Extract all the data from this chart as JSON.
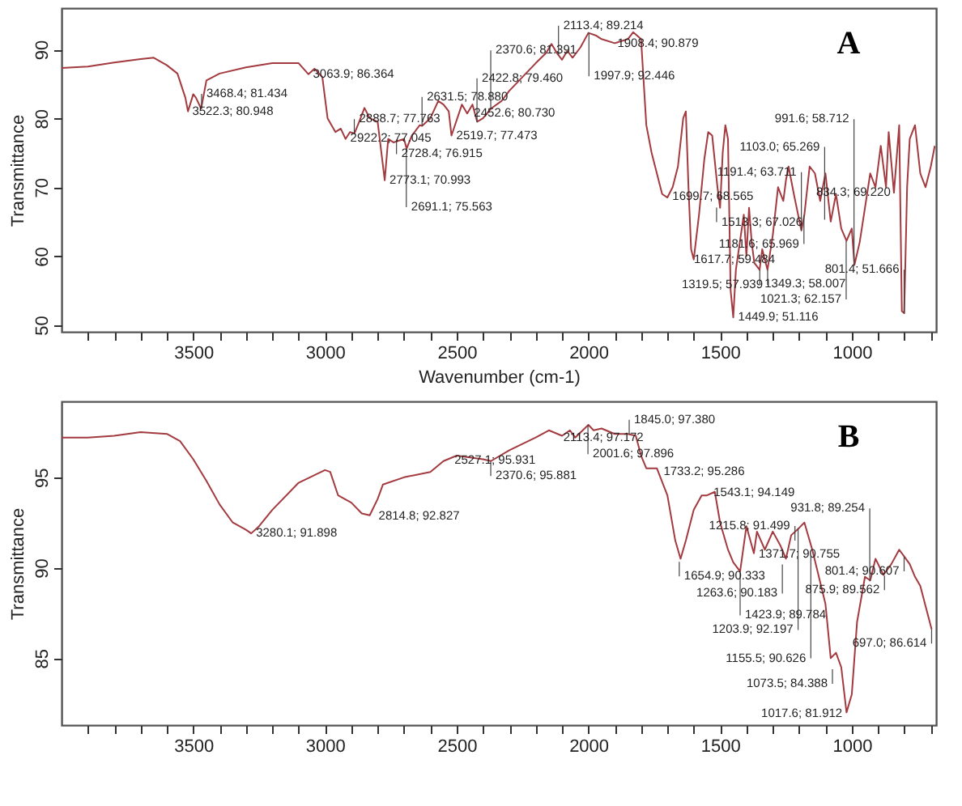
{
  "chart_data": [
    {
      "type": "line",
      "title": "A",
      "xlabel": "Wavenumber (cm-1)",
      "ylabel": "Transmittance",
      "x": [
        4000,
        3900,
        3800,
        3700,
        3650,
        3600,
        3560,
        3530,
        3520,
        3500,
        3490,
        3470,
        3450,
        3400,
        3300,
        3200,
        3100,
        3063,
        3040,
        3010,
        2990,
        2960,
        2940,
        2922,
        2905,
        2888,
        2870,
        2850,
        2830,
        2800,
        2773.1,
        2760,
        2740,
        2700,
        2690,
        2670,
        2640,
        2631,
        2600,
        2570,
        2550,
        2530,
        2519.7,
        2480,
        2460,
        2440,
        2422,
        2400,
        2370,
        2330,
        2300,
        2250,
        2200,
        2160,
        2140,
        2120,
        2100,
        2080,
        2060,
        2030,
        2000,
        1970,
        1950,
        1900,
        1850,
        1830,
        1800,
        1780,
        1760,
        1740,
        1720,
        1700,
        1680,
        1660,
        1640,
        1630,
        1620,
        1610,
        1600,
        1580,
        1560,
        1545,
        1530,
        1510,
        1500,
        1490,
        1480,
        1470,
        1460,
        1450,
        1440,
        1425,
        1410,
        1400,
        1390,
        1380,
        1370,
        1350,
        1340,
        1320,
        1300,
        1280,
        1260,
        1250,
        1240,
        1220,
        1191.4,
        1180,
        1160,
        1140,
        1120,
        1100,
        1080,
        1060,
        1040,
        1020,
        1000,
        990,
        970,
        950,
        930,
        910,
        890,
        870,
        860,
        840,
        820,
        810,
        801,
        790,
        780,
        760,
        740,
        720,
        700,
        685
      ],
      "series": [
        {
          "color": "#a33a3f",
          "values": [
            87.3,
            87.5,
            88.1,
            88.6,
            88.8,
            87.7,
            86.5,
            83,
            81,
            83.5,
            83,
            81.4,
            85.5,
            86.5,
            87.4,
            88,
            88,
            86.4,
            87.2,
            86,
            80,
            78,
            78.5,
            77,
            78,
            77.8,
            79.5,
            81.5,
            80,
            79.5,
            71.0,
            77,
            76.5,
            77,
            75.6,
            77.5,
            79,
            78.9,
            80,
            82.5,
            82,
            81,
            77.5,
            82,
            80.7,
            82,
            79.5,
            80,
            81.4,
            82.5,
            84,
            86,
            88,
            89.5,
            90.8,
            89.5,
            88.5,
            89.8,
            88.8,
            90.3,
            92.4,
            92,
            91.5,
            90.9,
            91.5,
            92.5,
            91.5,
            79,
            75,
            72,
            69,
            68.5,
            70,
            73,
            80,
            81,
            70,
            61,
            59.5,
            66,
            74,
            78,
            77.5,
            70,
            67,
            75,
            79,
            77,
            55,
            51.1,
            58,
            62,
            66,
            60,
            67,
            62,
            59,
            58,
            61,
            58,
            63,
            70,
            68,
            71,
            73,
            69,
            63.7,
            66,
            73,
            72,
            68,
            72,
            65,
            69,
            64,
            62.2,
            64,
            58.7,
            62,
            67,
            72,
            70,
            76,
            70,
            78,
            69.2,
            79,
            52,
            51.7,
            70,
            77,
            79,
            72,
            70,
            73,
            76
          ]
        }
      ],
      "xlim": [
        4000,
        680
      ],
      "ylim": [
        49,
        96
      ],
      "xticks": [
        {
          "value": 3900,
          "label": null
        },
        {
          "value": 3800,
          "label": null
        },
        {
          "value": 3700,
          "label": null
        },
        {
          "value": 3600,
          "label": null
        },
        3500,
        {
          "value": 3400,
          "label": null
        },
        {
          "value": 3300,
          "label": null
        },
        {
          "value": 3200,
          "label": null
        },
        {
          "value": 3100,
          "label": null
        },
        3000,
        {
          "value": 2900,
          "label": null
        },
        {
          "value": 2800,
          "label": null
        },
        {
          "value": 2700,
          "label": null
        },
        {
          "value": 2600,
          "label": null
        },
        2500,
        {
          "value": 2400,
          "label": null
        },
        {
          "value": 2300,
          "label": null
        },
        {
          "value": 2200,
          "label": null
        },
        {
          "value": 2100,
          "label": null
        },
        2000,
        {
          "value": 1900,
          "label": null
        },
        {
          "value": 1800,
          "label": null
        },
        {
          "value": 1700,
          "label": null
        },
        {
          "value": 1600,
          "label": null
        },
        1500,
        {
          "value": 1400,
          "label": null
        },
        {
          "value": 1300,
          "label": null
        },
        {
          "value": 1200,
          "label": null
        },
        {
          "value": 1100,
          "label": null
        },
        1000,
        {
          "value": 900,
          "label": null
        },
        {
          "value": 800,
          "label": null
        },
        {
          "value": 700,
          "label": null
        }
      ],
      "yticks": [
        50,
        60,
        70,
        80,
        90
      ],
      "annotations": [
        {
          "text": "3522.3; 80.948",
          "x": 3522.3,
          "y": 80.948
        },
        {
          "text": "3468.4; 81.434",
          "x": 3468.4,
          "y": 81.434
        },
        {
          "text": "3063.9; 86.364",
          "x": 3063.9,
          "y": 86.364
        },
        {
          "text": "2922.2; 77.045",
          "x": 2922.2,
          "y": 77.045
        },
        {
          "text": "2888.7; 77.763",
          "x": 2888.7,
          "y": 77.763
        },
        {
          "text": "2773.1; 70.993",
          "x": 2773.1,
          "y": 70.993
        },
        {
          "text": "2728.4; 76.915",
          "x": 2728.4,
          "y": 76.915
        },
        {
          "text": "2691.1; 75.563",
          "x": 2691.1,
          "y": 75.563
        },
        {
          "text": "2631.5; 78.880",
          "x": 2631.5,
          "y": 78.88
        },
        {
          "text": "2519.7; 77.473",
          "x": 2519.7,
          "y": 77.473
        },
        {
          "text": "2422.8; 79.460",
          "x": 2422.8,
          "y": 79.46
        },
        {
          "text": "2452.6; 80.730",
          "x": 2452.6,
          "y": 80.73
        },
        {
          "text": "2370.6; 81.391",
          "x": 2370.6,
          "y": 81.391
        },
        {
          "text": "2113.4; 89.214",
          "x": 2113.4,
          "y": 89.214
        },
        {
          "text": "1997.9; 92.446",
          "x": 1997.9,
          "y": 92.446
        },
        {
          "text": "1908.4; 90.879",
          "x": 1908.4,
          "y": 90.879
        },
        {
          "text": "1699.7; 68.565",
          "x": 1699.7,
          "y": 68.565
        },
        {
          "text": "1617.7; 59.484",
          "x": 1617.7,
          "y": 59.484
        },
        {
          "text": "1513.3; 67.026",
          "x": 1513.3,
          "y": 67.026
        },
        {
          "text": "1181.6; 65.969",
          "x": 1181.6,
          "y": 65.969
        },
        {
          "text": "1349.3; 58.007",
          "x": 1349.3,
          "y": 58.007
        },
        {
          "text": "1319.5; 57.939",
          "x": 1319.5,
          "y": 57.939
        },
        {
          "text": "1449.9; 51.116",
          "x": 1449.9,
          "y": 51.116
        },
        {
          "text": "1191.4; 63.711",
          "x": 1191.4,
          "y": 63.711
        },
        {
          "text": "1103.0; 65.269",
          "x": 1103,
          "y": 65.269
        },
        {
          "text": "1021.3; 62.157",
          "x": 1021.3,
          "y": 62.157
        },
        {
          "text": "991.6; 58.712",
          "x": 991.6,
          "y": 58.712
        },
        {
          "text": "834.3; 69.220",
          "x": 834.3,
          "y": 69.22
        },
        {
          "text": "801.4; 51.666",
          "x": 801.4,
          "y": 51.666
        }
      ]
    },
    {
      "type": "line",
      "title": "B",
      "ylabel": "Transmittance",
      "x": [
        4000,
        3900,
        3800,
        3700,
        3600,
        3550,
        3500,
        3450,
        3400,
        3350,
        3300,
        3280,
        3250,
        3200,
        3100,
        3000,
        2980,
        2950,
        2900,
        2860,
        2830,
        2800,
        2780,
        2700,
        2600,
        2550,
        2500,
        2450,
        2400,
        2370,
        2300,
        2200,
        2150,
        2100,
        2070,
        2050,
        2000,
        1980,
        1950,
        1900,
        1850,
        1820,
        1800,
        1780,
        1740,
        1700,
        1670,
        1650,
        1630,
        1600,
        1570,
        1550,
        1520,
        1500,
        1470,
        1450,
        1423.9,
        1400,
        1371.7,
        1360,
        1330,
        1300,
        1270,
        1250,
        1230,
        1200,
        1180,
        1150,
        1100,
        1080,
        1060,
        1040,
        1020,
        1000,
        980,
        950,
        930,
        910,
        880,
        850,
        820,
        800,
        780,
        760,
        740,
        697
      ],
      "series": [
        {
          "color": "#a33a3f",
          "values": [
            97.2,
            97.2,
            97.3,
            97.5,
            97.4,
            97,
            96,
            94.8,
            93.5,
            92.5,
            92.1,
            91.9,
            92.3,
            93.2,
            94.7,
            95.4,
            95.3,
            94,
            93.6,
            93,
            92.9,
            93.8,
            94.6,
            95,
            95.3,
            95.9,
            96.2,
            96.1,
            96,
            95.9,
            96.5,
            97.2,
            97.6,
            97.3,
            97.6,
            97.2,
            97.9,
            97.6,
            97.7,
            97.4,
            97.4,
            97.3,
            96.2,
            95.5,
            95.5,
            94,
            91.5,
            90.5,
            91.5,
            93.2,
            94,
            94,
            94.2,
            92.5,
            91,
            90.3,
            89.8,
            92.3,
            90.8,
            92,
            91,
            92,
            91.2,
            90.5,
            91.8,
            92.2,
            92.5,
            91,
            88,
            85,
            85.3,
            84.5,
            82,
            83,
            87,
            89.5,
            89.3,
            90.5,
            89.6,
            90.2,
            91,
            90.6,
            90.2,
            89.5,
            89,
            86.6
          ]
        }
      ],
      "xlim": [
        4000,
        680
      ],
      "ylim": [
        81.3,
        99.2
      ],
      "xticks": [
        {
          "value": 3900,
          "label": null
        },
        {
          "value": 3800,
          "label": null
        },
        {
          "value": 3700,
          "label": null
        },
        {
          "value": 3600,
          "label": null
        },
        3500,
        {
          "value": 3400,
          "label": null
        },
        {
          "value": 3300,
          "label": null
        },
        {
          "value": 3200,
          "label": null
        },
        {
          "value": 3100,
          "label": null
        },
        3000,
        {
          "value": 2900,
          "label": null
        },
        {
          "value": 2800,
          "label": null
        },
        {
          "value": 2700,
          "label": null
        },
        {
          "value": 2600,
          "label": null
        },
        2500,
        {
          "value": 2400,
          "label": null
        },
        {
          "value": 2300,
          "label": null
        },
        {
          "value": 2200,
          "label": null
        },
        {
          "value": 2100,
          "label": null
        },
        2000,
        {
          "value": 1900,
          "label": null
        },
        {
          "value": 1800,
          "label": null
        },
        {
          "value": 1700,
          "label": null
        },
        {
          "value": 1600,
          "label": null
        },
        1500,
        {
          "value": 1400,
          "label": null
        },
        {
          "value": 1300,
          "label": null
        },
        {
          "value": 1200,
          "label": null
        },
        {
          "value": 1100,
          "label": null
        },
        1000,
        {
          "value": 900,
          "label": null
        },
        {
          "value": 800,
          "label": null
        },
        {
          "value": 700,
          "label": null
        }
      ],
      "yticks": [
        85,
        90,
        95
      ],
      "annotations": [
        {
          "text": "3280.1; 91.898",
          "x": 3280.1,
          "y": 91.898
        },
        {
          "text": "2814.8; 92.827",
          "x": 2814.8,
          "y": 92.827
        },
        {
          "text": "2527.1; 95.931",
          "x": 2527.1,
          "y": 95.931
        },
        {
          "text": "2370.6; 95.881",
          "x": 2370.6,
          "y": 95.881
        },
        {
          "text": "2113.4; 97.172",
          "x": 2113.4,
          "y": 97.172
        },
        {
          "text": "2001.6; 97.896",
          "x": 2001.6,
          "y": 97.896
        },
        {
          "text": "1845.0; 97.380",
          "x": 1845,
          "y": 97.38
        },
        {
          "text": "1733.2; 95.286",
          "x": 1733.2,
          "y": 95.286
        },
        {
          "text": "1543.1; 94.149",
          "x": 1543.1,
          "y": 94.149
        },
        {
          "text": "1371.7; 90.755",
          "x": 1371.7,
          "y": 90.755
        },
        {
          "text": "1654.9; 90.333",
          "x": 1654.9,
          "y": 90.333
        },
        {
          "text": "1263.6; 90.183",
          "x": 1263.6,
          "y": 90.183
        },
        {
          "text": "1423.9; 89.784",
          "x": 1423.9,
          "y": 89.784
        },
        {
          "text": "1215.8; 91.499",
          "x": 1215.8,
          "y": 91.499
        },
        {
          "text": "1203.9; 92.197",
          "x": 1203.9,
          "y": 92.197
        },
        {
          "text": "801.4; 90.607",
          "x": 801.4,
          "y": 90.607
        },
        {
          "text": "1155.5; 90.626",
          "x": 1155.5,
          "y": 90.626
        },
        {
          "text": "931.8; 89.254",
          "x": 931.8,
          "y": 89.254
        },
        {
          "text": "875.9; 89.562",
          "x": 875.9,
          "y": 89.562
        },
        {
          "text": "697.0; 86.614",
          "x": 697,
          "y": 86.614
        },
        {
          "text": "1073.5; 84.388",
          "x": 1073.5,
          "y": 84.388
        },
        {
          "text": "1017.6; 81.912",
          "x": 1017.6,
          "y": 81.912
        }
      ]
    }
  ]
}
